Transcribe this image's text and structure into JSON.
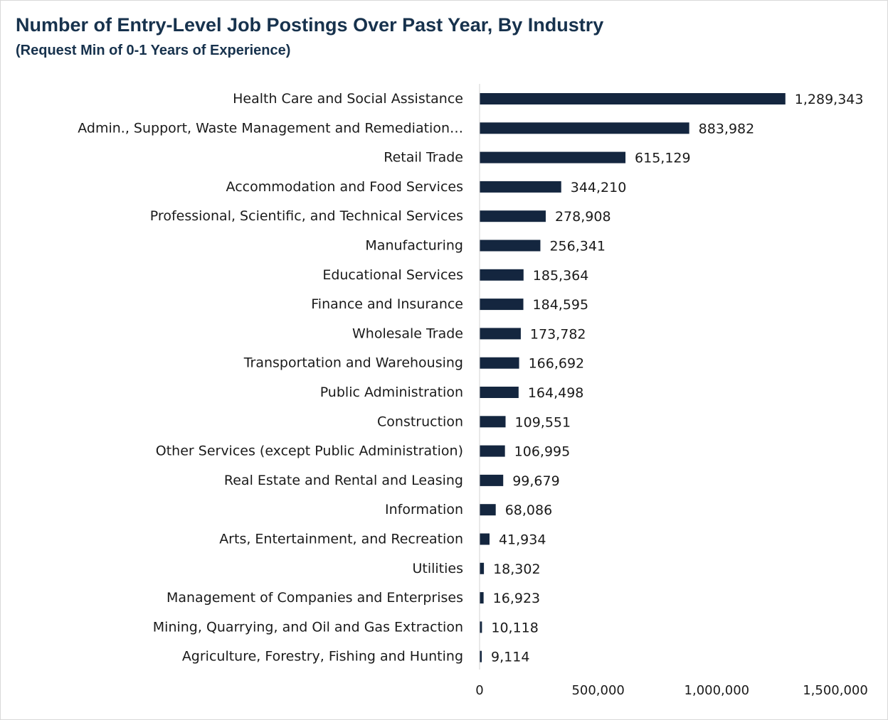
{
  "chart_data": {
    "type": "bar",
    "orientation": "horizontal",
    "title": "Number of Entry-Level Job Postings Over Past Year, By Industry",
    "subtitle": "(Request Min of 0-1 Years of Experience)",
    "categories": [
      "Health Care and Social Assistance",
      "Admin., Support, Waste Management and Remediation…",
      "Retail Trade",
      "Accommodation and Food Services",
      "Professional, Scientific, and Technical Services",
      "Manufacturing",
      "Educational Services",
      "Finance and Insurance",
      "Wholesale Trade",
      "Transportation and Warehousing",
      "Public Administration",
      "Construction",
      "Other Services (except Public Administration)",
      "Real Estate and Rental and Leasing",
      "Information",
      "Arts, Entertainment, and Recreation",
      "Utilities",
      "Management of Companies and Enterprises",
      "Mining, Quarrying, and Oil and Gas Extraction",
      "Agriculture, Forestry, Fishing and Hunting"
    ],
    "values": [
      1289343,
      883982,
      615129,
      344210,
      278908,
      256341,
      185364,
      184595,
      173782,
      166692,
      164498,
      109551,
      106995,
      99679,
      68086,
      41934,
      18302,
      16923,
      10118,
      9114
    ],
    "value_labels": [
      "1,289,343",
      "883,982",
      "615,129",
      "344,210",
      "278,908",
      "256,341",
      "185,364",
      "184,595",
      "173,782",
      "166,692",
      "164,498",
      "109,551",
      "106,995",
      "99,679",
      "68,086",
      "41,934",
      "18,302",
      "16,923",
      "10,118",
      "9,114"
    ],
    "xlim": [
      0,
      1500000
    ],
    "xticks": [
      0,
      500000,
      1000000,
      1500000
    ],
    "xtick_labels": [
      "0",
      "500,000",
      "1,000,000",
      "1,500,000"
    ],
    "xlabel": "",
    "ylabel": "",
    "grid": false,
    "legend": "none",
    "bar_color": "#14263f"
  }
}
